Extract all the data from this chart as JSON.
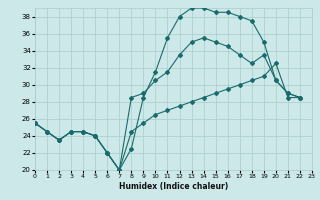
{
  "xlabel": "Humidex (Indice chaleur)",
  "bg_color": "#cce8e8",
  "line_color": "#1a6b6b",
  "grid_color": "#aacccc",
  "xlim": [
    0,
    23
  ],
  "ylim": [
    20,
    39
  ],
  "yticks": [
    20,
    22,
    24,
    26,
    28,
    30,
    32,
    34,
    36,
    38
  ],
  "xticks": [
    0,
    1,
    2,
    3,
    4,
    5,
    6,
    7,
    8,
    9,
    10,
    11,
    12,
    13,
    14,
    15,
    16,
    17,
    18,
    19,
    20,
    21,
    22,
    23
  ],
  "lines": [
    {
      "x": [
        0,
        1,
        2,
        3,
        4,
        5,
        6,
        7,
        8,
        9,
        10,
        11,
        12,
        13,
        14,
        15,
        16,
        17,
        18,
        19,
        20,
        21,
        22
      ],
      "y": [
        25.5,
        24.5,
        23.5,
        24.5,
        24.5,
        24.0,
        22.0,
        20.0,
        22.5,
        28.5,
        31.5,
        35.5,
        38.0,
        39.0,
        39.0,
        38.5,
        38.5,
        38.0,
        37.5,
        35.0,
        30.5,
        29.0,
        28.5
      ]
    },
    {
      "x": [
        0,
        1,
        2,
        3,
        4,
        5,
        6,
        7,
        8,
        9,
        10,
        11,
        12,
        13,
        14,
        15,
        16,
        17,
        18,
        19,
        20,
        21,
        22
      ],
      "y": [
        25.5,
        24.5,
        23.5,
        24.5,
        24.5,
        24.0,
        22.0,
        20.0,
        28.5,
        29.0,
        30.5,
        31.5,
        33.5,
        35.0,
        35.5,
        35.0,
        34.5,
        33.5,
        32.5,
        33.5,
        30.5,
        29.0,
        28.5
      ]
    },
    {
      "x": [
        0,
        1,
        2,
        3,
        4,
        5,
        6,
        7,
        8,
        9,
        10,
        11,
        12,
        13,
        14,
        15,
        16,
        17,
        18,
        19,
        20,
        21,
        22
      ],
      "y": [
        25.5,
        24.5,
        23.5,
        24.5,
        24.5,
        24.0,
        22.0,
        20.0,
        24.5,
        25.5,
        26.5,
        27.0,
        27.5,
        28.0,
        28.5,
        29.0,
        29.5,
        30.0,
        30.5,
        31.0,
        32.5,
        28.5,
        28.5
      ]
    }
  ]
}
